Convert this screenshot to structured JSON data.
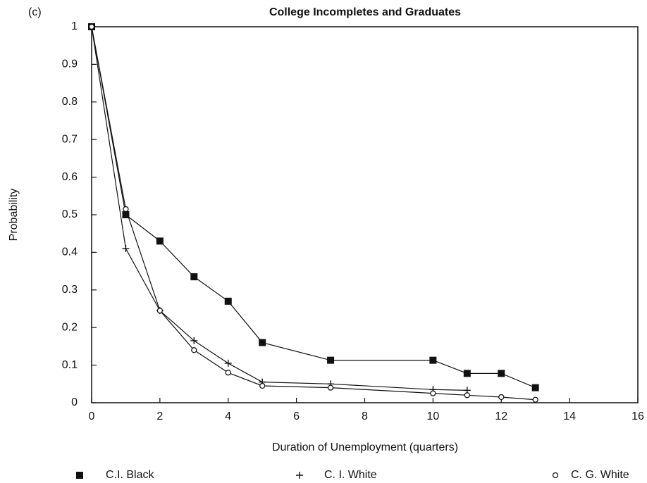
{
  "chart_data": {
    "type": "line",
    "title": "College Incompletes and Graduates",
    "annotation": "(c)",
    "x_label": "Duration of Unemployment (quarters)",
    "y_label": "Probability",
    "xlim": [
      0,
      16
    ],
    "xticks": [
      0,
      2,
      4,
      6,
      8,
      10,
      12,
      14,
      16
    ],
    "ylim": [
      0,
      1
    ],
    "yticks": [
      0,
      0.1,
      0.2,
      0.3,
      0.4,
      0.5,
      0.6,
      0.7,
      0.8,
      0.9,
      1
    ],
    "series": [
      {
        "name": "C.I. Black",
        "color": "#111111",
        "marker": "square",
        "x": [
          0,
          1,
          2,
          3,
          4,
          5,
          7,
          10,
          11,
          12,
          13
        ],
        "values": [
          1,
          0.5,
          0.43,
          0.335,
          0.27,
          0.16,
          0.113,
          0.113,
          0.078,
          0.078,
          0.04
        ]
      },
      {
        "name": "C. I. White",
        "color": "#111111",
        "marker": "plus",
        "x": [
          0,
          1,
          2,
          3,
          4,
          5,
          7,
          10,
          11
        ],
        "values": [
          1,
          0.41,
          0.245,
          0.165,
          0.105,
          0.055,
          0.05,
          0.035,
          0.033
        ]
      },
      {
        "name": "C. G. White",
        "color": "#111111",
        "marker": "circle",
        "x": [
          0,
          1,
          2,
          3,
          4,
          5,
          7,
          10,
          11,
          12,
          13
        ],
        "values": [
          1,
          0.515,
          0.245,
          0.14,
          0.08,
          0.045,
          0.04,
          0.025,
          0.02,
          0.015,
          0.008
        ]
      }
    ]
  }
}
